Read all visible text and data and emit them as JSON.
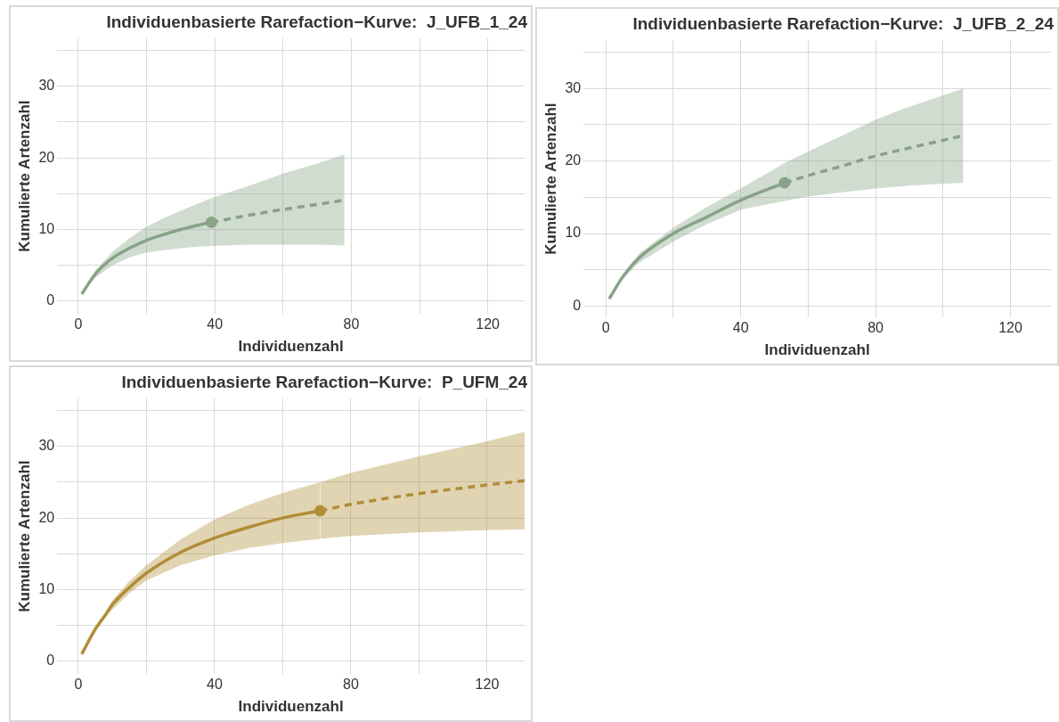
{
  "chart_data": [
    {
      "type": "line",
      "title": "Individuenbasierte Rarefaction−Kurve:  J_UFB_1_24",
      "xlabel": "Individuenzahl",
      "ylabel": "Kumulierte Artenzahl",
      "xlim": [
        -6.2,
        130.8
      ],
      "ylim": [
        -1.8,
        36.7
      ],
      "xticks": [
        0,
        {
          "value": 20,
          "label": null
        },
        40,
        {
          "value": 60,
          "label": null
        },
        80,
        {
          "value": 100,
          "label": null
        },
        120
      ],
      "yticks": [
        0,
        {
          "value": 5,
          "label": null
        },
        10,
        {
          "value": 15,
          "label": null
        },
        20,
        {
          "value": 25,
          "label": null
        },
        30,
        {
          "value": 35,
          "label": null
        }
      ],
      "grid": true,
      "legend": false,
      "series": [
        {
          "line_style": "solid",
          "color": "#87a386",
          "x": [
            1,
            5,
            10,
            15,
            20,
            25,
            30,
            35,
            39
          ],
          "values": [
            1,
            3.8,
            6.0,
            7.4,
            8.5,
            9.3,
            10.0,
            10.6,
            11
          ],
          "lower": [
            1,
            3.3,
            5.0,
            6.1,
            6.8,
            7.1,
            7.4,
            7.6,
            7.7
          ],
          "upper": [
            1,
            4.3,
            6.9,
            8.8,
            10.4,
            11.6,
            12.6,
            13.6,
            14.4
          ]
        },
        {
          "line_style": "dashed",
          "color": "#87a386",
          "x": [
            39,
            50,
            60,
            70,
            78
          ],
          "values": [
            11,
            12.0,
            12.8,
            13.5,
            14.1
          ],
          "lower": [
            7.7,
            7.9,
            7.9,
            7.9,
            7.8
          ],
          "upper": [
            14.4,
            16.1,
            17.8,
            19.2,
            20.5
          ]
        },
        {
          "type": "scatter",
          "marker": "circle",
          "color": "#87a386",
          "x": [
            39
          ],
          "values": [
            11
          ]
        }
      ]
    },
    {
      "type": "line",
      "title": "Individuenbasierte Rarefaction−Kurve:  J_UFB_2_24",
      "xlabel": "Individuenzahl",
      "ylabel": "Kumulierte Artenzahl",
      "xlim": [
        -6.6,
        132
      ],
      "ylim": [
        -1.6,
        36.7
      ],
      "xticks": [
        0,
        {
          "value": 20,
          "label": null
        },
        40,
        {
          "value": 60,
          "label": null
        },
        80,
        {
          "value": 100,
          "label": null
        },
        120
      ],
      "yticks": [
        0,
        {
          "value": 5,
          "label": null
        },
        10,
        {
          "value": 15,
          "label": null
        },
        20,
        {
          "value": 25,
          "label": null
        },
        30,
        {
          "value": 35,
          "label": null
        }
      ],
      "grid": true,
      "legend": false,
      "series": [
        {
          "line_style": "solid",
          "color": "#87a386",
          "x": [
            1,
            5,
            10,
            20,
            30,
            40,
            53
          ],
          "values": [
            1,
            4,
            6.7,
            10.0,
            12.3,
            14.6,
            17
          ],
          "lower": [
            1,
            3.8,
            6.0,
            8.9,
            11.3,
            13.3,
            14.5
          ],
          "upper": [
            1,
            4.3,
            7.3,
            10.8,
            13.7,
            16.2,
            19.7
          ]
        },
        {
          "line_style": "dashed",
          "color": "#87a386",
          "x": [
            53,
            60,
            70,
            80,
            90,
            106
          ],
          "values": [
            17,
            18.0,
            19.3,
            20.7,
            21.8,
            23.5
          ],
          "lower": [
            14.5,
            15.1,
            15.7,
            16.2,
            16.6,
            17.0
          ],
          "upper": [
            19.7,
            21.3,
            23.5,
            25.7,
            27.5,
            30.0
          ]
        },
        {
          "type": "scatter",
          "marker": "circle",
          "color": "#87a386",
          "x": [
            53
          ],
          "values": [
            17
          ]
        }
      ]
    },
    {
      "type": "line",
      "title": "Individuenbasierte Rarefaction−Kurve:  P_UFM_24",
      "xlabel": "Individuenzahl",
      "ylabel": "Kumulierte Artenzahl",
      "xlim": [
        -6.2,
        131
      ],
      "ylim": [
        -1.8,
        36.7
      ],
      "xticks": [
        0,
        {
          "value": 20,
          "label": null
        },
        40,
        {
          "value": 60,
          "label": null
        },
        80,
        {
          "value": 100,
          "label": null
        },
        120
      ],
      "yticks": [
        0,
        {
          "value": 5,
          "label": null
        },
        10,
        {
          "value": 15,
          "label": null
        },
        20,
        {
          "value": 25,
          "label": null
        },
        30,
        {
          "value": 35,
          "label": null
        }
      ],
      "grid": true,
      "legend": false,
      "series": [
        {
          "line_style": "solid",
          "color": "#b08d37",
          "x": [
            1,
            5,
            8,
            10,
            15,
            20,
            30,
            40,
            50,
            60,
            71
          ],
          "values": [
            1,
            4.5,
            6.5,
            7.9,
            10.3,
            12.3,
            15.2,
            17.2,
            18.7,
            20,
            21
          ],
          "lower": [
            1,
            4.3,
            6.3,
            7.2,
            9.5,
            11.3,
            13.4,
            14.8,
            15.8,
            16.5,
            17.1
          ],
          "upper": [
            1,
            4.7,
            6.8,
            8.5,
            11.2,
            13.4,
            17.0,
            19.8,
            21.8,
            23.5,
            25.0
          ]
        },
        {
          "line_style": "dashed",
          "color": "#b08d37",
          "x": [
            71,
            80,
            100,
            120,
            131
          ],
          "values": [
            21,
            21.9,
            23.4,
            24.6,
            25.2
          ],
          "lower": [
            17.1,
            17.5,
            18.0,
            18.3,
            18.4
          ],
          "upper": [
            25.0,
            26.3,
            28.6,
            30.7,
            32
          ]
        },
        {
          "type": "scatter",
          "marker": "circle",
          "color": "#b08d37",
          "x": [
            71
          ],
          "values": [
            21
          ]
        }
      ]
    }
  ]
}
